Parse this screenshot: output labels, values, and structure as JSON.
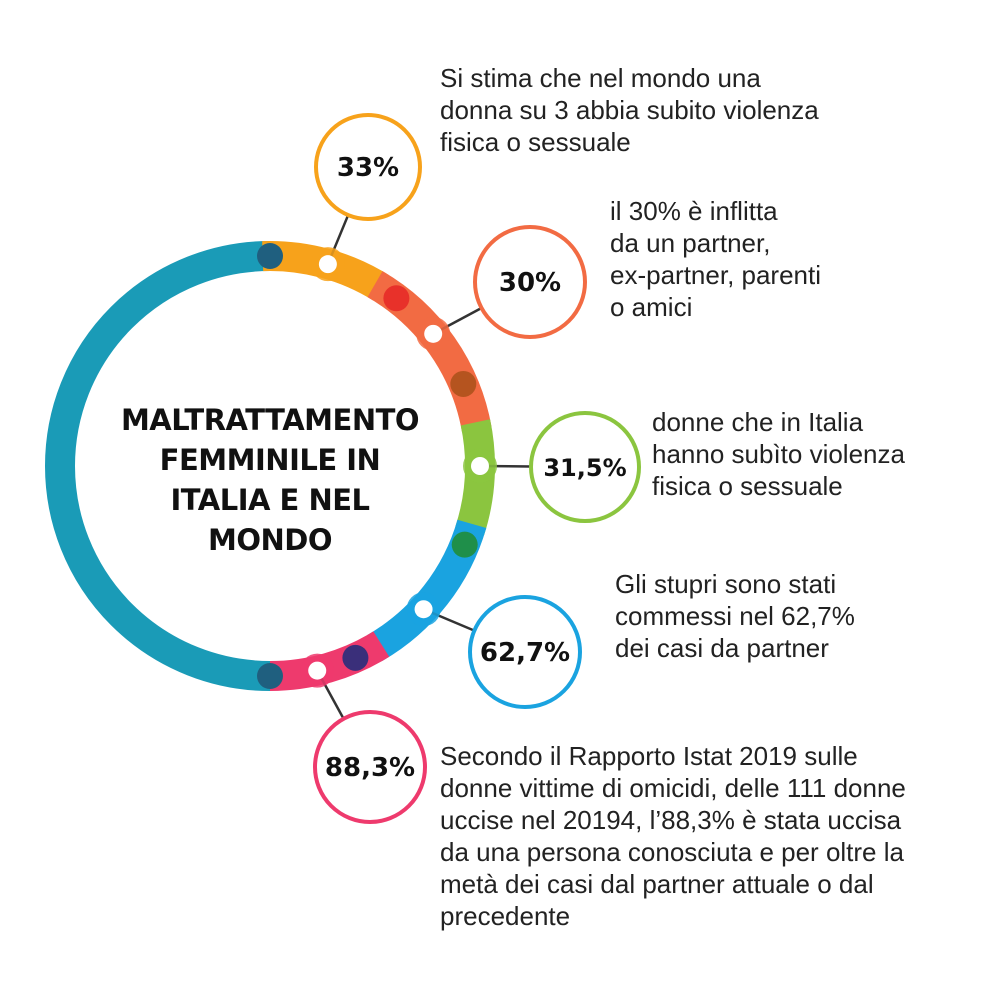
{
  "title": {
    "lines": [
      "MALTRATTAMENTO",
      "FEMMINILE IN",
      "ITALIA E NEL",
      "MONDO"
    ]
  },
  "colors": {
    "ring_left": "#1a9bb7",
    "orange": "#f7a21b",
    "red_orange": "#f26b43",
    "green": "#8bc53f",
    "blue": "#1aa3e0",
    "pink": "#ee3a6d",
    "dark_dot": "#1f5f7f"
  },
  "stats": [
    {
      "value": "33%",
      "color": "#f7a21b",
      "description": [
        "Si stima che nel mondo una",
        "donna su 3 abbia subito violenza",
        "fisica o sessuale"
      ]
    },
    {
      "value": "30%",
      "color": "#f26b43",
      "description": [
        "il 30% è inflitta",
        "da un partner,",
        "ex-partner, parenti",
        "o amici"
      ]
    },
    {
      "value": "31,5%",
      "color": "#8bc53f",
      "description": [
        "donne che in Italia",
        "hanno subìto violenza",
        "fisica o sessuale"
      ]
    },
    {
      "value": "62,7%",
      "color": "#1aa3e0",
      "description": [
        "Gli stupri sono stati",
        "commessi nel 62,7%",
        "dei casi da partner"
      ]
    },
    {
      "value": "88,3%",
      "color": "#ee3a6d",
      "description": [
        "Secondo il Rapporto Istat 2019 sulle",
        "donne vittime di omicidi, delle 111 donne",
        "uccise nel 20194, l’88,3% è stata uccisa",
        "da una persona conosciuta e per oltre la",
        "metà dei casi dal partner attuale o dal",
        "precedente"
      ]
    }
  ]
}
